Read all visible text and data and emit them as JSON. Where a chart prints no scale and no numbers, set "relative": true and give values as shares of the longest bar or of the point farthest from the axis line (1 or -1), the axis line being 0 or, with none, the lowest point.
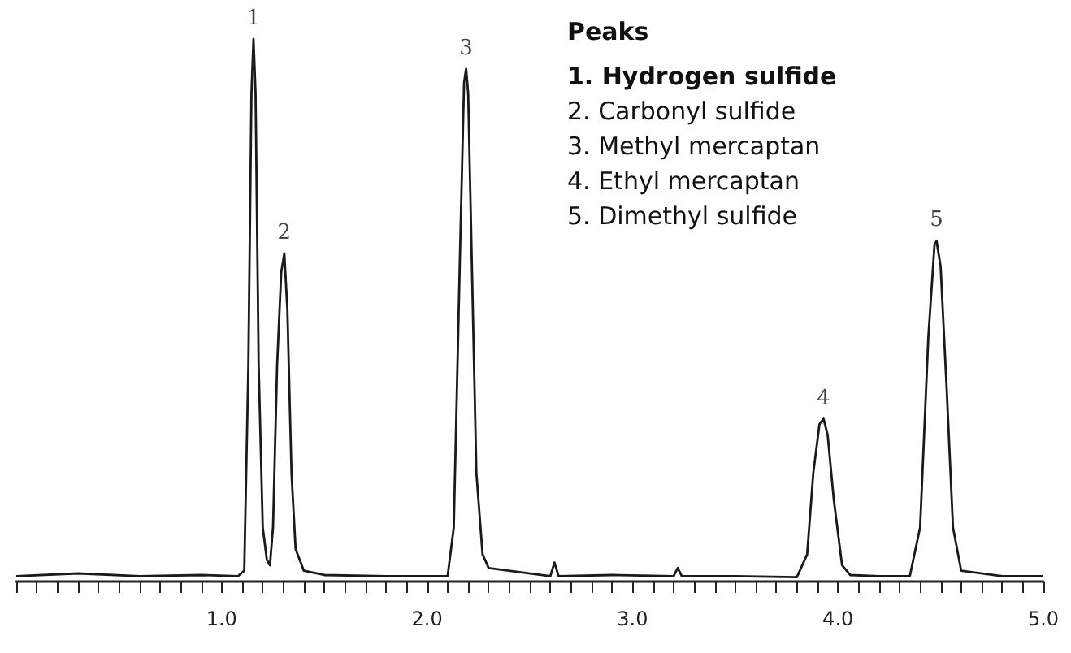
{
  "chart_data": {
    "type": "line",
    "relative": true,
    "marker": "none",
    "line_style": "solid",
    "tick_labels": "x",
    "x": [
      0,
      0.3,
      0.6,
      0.9,
      1.08,
      1.11,
      1.13,
      1.145,
      1.155,
      1.165,
      1.18,
      1.2,
      1.22,
      1.235,
      1.25,
      1.27,
      1.29,
      1.305,
      1.32,
      1.34,
      1.36,
      1.4,
      1.5,
      1.8,
      2.1,
      2.13,
      2.16,
      2.18,
      2.19,
      2.2,
      2.22,
      2.24,
      2.27,
      2.3,
      2.6,
      2.62,
      2.64,
      2.9,
      3.2,
      3.22,
      3.24,
      3.5,
      3.8,
      3.85,
      3.88,
      3.91,
      3.93,
      3.95,
      3.98,
      4.02,
      4.06,
      4.2,
      4.35,
      4.4,
      4.44,
      4.47,
      4.48,
      4.5,
      4.53,
      4.56,
      4.6,
      4.8,
      5.0
    ],
    "series": [
      {
        "color": "#1a1a1a",
        "values": [
          0.01,
          0.015,
          0.01,
          0.012,
          0.01,
          0.02,
          0.4,
          0.9,
          1,
          0.9,
          0.4,
          0.1,
          0.04,
          0.03,
          0.1,
          0.4,
          0.57,
          0.605,
          0.5,
          0.2,
          0.06,
          0.02,
          0.012,
          0.01,
          0.01,
          0.1,
          0.6,
          0.92,
          0.945,
          0.9,
          0.55,
          0.2,
          0.05,
          0.025,
          0.01,
          0.035,
          0.01,
          0.012,
          0.01,
          0.025,
          0.01,
          0.01,
          0.008,
          0.05,
          0.2,
          0.29,
          0.3,
          0.27,
          0.15,
          0.03,
          0.012,
          0.01,
          0.01,
          0.1,
          0.45,
          0.62,
          0.628,
          0.58,
          0.35,
          0.1,
          0.02,
          0.01,
          0.01
        ]
      }
    ],
    "xlim": [
      0,
      5
    ],
    "xticks": [
      {
        "value": 0,
        "label": null
      },
      {
        "value": 0.1,
        "label": null
      },
      {
        "value": 0.2,
        "label": null
      },
      {
        "value": 0.3,
        "label": null
      },
      {
        "value": 0.4,
        "label": null
      },
      {
        "value": 0.5,
        "label": null
      },
      {
        "value": 0.6,
        "label": null
      },
      {
        "value": 0.7,
        "label": null
      },
      {
        "value": 0.8,
        "label": null
      },
      {
        "value": 0.9,
        "label": null
      },
      {
        "value": 1,
        "label": "1.0"
      },
      {
        "value": 1.1,
        "label": null
      },
      {
        "value": 1.2,
        "label": null
      },
      {
        "value": 1.3,
        "label": null
      },
      {
        "value": 1.4,
        "label": null
      },
      {
        "value": 1.5,
        "label": null
      },
      {
        "value": 1.6,
        "label": null
      },
      {
        "value": 1.7,
        "label": null
      },
      {
        "value": 1.8,
        "label": null
      },
      {
        "value": 1.9,
        "label": null
      },
      {
        "value": 2,
        "label": "2.0"
      },
      {
        "value": 2.1,
        "label": null
      },
      {
        "value": 2.2,
        "label": null
      },
      {
        "value": 2.3,
        "label": null
      },
      {
        "value": 2.4,
        "label": null
      },
      {
        "value": 2.5,
        "label": null
      },
      {
        "value": 2.6,
        "label": null
      },
      {
        "value": 2.7,
        "label": null
      },
      {
        "value": 2.8,
        "label": null
      },
      {
        "value": 2.9,
        "label": null
      },
      {
        "value": 3,
        "label": "3.0"
      },
      {
        "value": 3.1,
        "label": null
      },
      {
        "value": 3.2,
        "label": null
      },
      {
        "value": 3.3,
        "label": null
      },
      {
        "value": 3.4,
        "label": null
      },
      {
        "value": 3.5,
        "label": null
      },
      {
        "value": 3.6,
        "label": null
      },
      {
        "value": 3.7,
        "label": null
      },
      {
        "value": 3.8,
        "label": null
      },
      {
        "value": 3.9,
        "label": null
      },
      {
        "value": 4,
        "label": "4.0"
      },
      {
        "value": 4.1,
        "label": null
      },
      {
        "value": 4.2,
        "label": null
      },
      {
        "value": 4.3,
        "label": null
      },
      {
        "value": 4.4,
        "label": null
      },
      {
        "value": 4.5,
        "label": null
      },
      {
        "value": 4.6,
        "label": null
      },
      {
        "value": 4.7,
        "label": null
      },
      {
        "value": 4.8,
        "label": null
      },
      {
        "value": 4.9,
        "label": null
      },
      {
        "value": 5,
        "label": "5.0"
      }
    ],
    "annotations": [
      "Peaks",
      "1. Hydrogen sulfide",
      "2. Carbonyl sulfide",
      "3. Methyl mercaptan",
      "4. Ethyl mercaptan",
      "5. Dimethyl sulfide",
      {
        "text": "1",
        "x": 1.155,
        "y": 1
      },
      {
        "text": "2",
        "x": 1.305,
        "y": 0.605
      },
      {
        "text": "3",
        "x": 2.19,
        "y": 0.945
      },
      {
        "text": "4",
        "x": 3.93,
        "y": 0.3
      },
      {
        "text": "5",
        "x": 4.48,
        "y": 0.628
      }
    ]
  }
}
